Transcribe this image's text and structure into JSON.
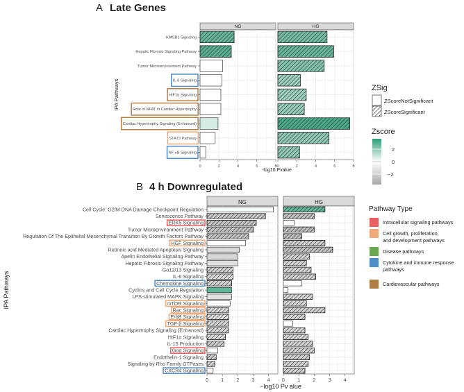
{
  "chart_data": [
    {
      "type": "bar",
      "panel_label": "A",
      "title": "Late Genes",
      "facets": [
        "NG",
        "HG"
      ],
      "xlabel": "-log10 Pvalue",
      "ylabel": "IPA Pathways",
      "xlim": [
        0,
        8
      ],
      "xticks": [
        0,
        2,
        4,
        6,
        8
      ],
      "grid": true,
      "categories": [
        "HMGB1 Signaling",
        "Hepatic Fibrosis Signaling Pathway",
        "Tumor Microenvironment Pathway",
        "IL-6 Signaling",
        "HIF1α Signaling",
        "Role of NFAT in Cardiac Hypertrophy",
        "Cardiac Hypertrophy Signaling (Enhanced)",
        "STAT3 Pathway",
        "NF-κB Signaling"
      ],
      "category_box_colors": [
        "",
        "",
        "",
        "#4f8ec8",
        "#b07d45",
        "#b07d45",
        "#b07d45",
        "#f0a978",
        "#4f8ec8"
      ],
      "series": [
        {
          "name": "NG",
          "values": [
            3.6,
            3.3,
            2.4,
            2.3,
            2.2,
            2.2,
            1.9,
            1.6,
            0.6
          ],
          "zscore": [
            2.2,
            2.4,
            0.0,
            0.0,
            0.0,
            0.0,
            0.6,
            0.0,
            0.0
          ],
          "significant": [
            true,
            true,
            false,
            false,
            false,
            false,
            false,
            false,
            false
          ]
        },
        {
          "name": "HG",
          "values": [
            5.2,
            5.9,
            4.9,
            2.4,
            3.0,
            2.8,
            7.6,
            5.4,
            2.3
          ],
          "zscore": [
            2.0,
            2.2,
            1.8,
            1.4,
            1.4,
            1.5,
            2.6,
            1.6,
            1.6
          ],
          "significant": [
            true,
            true,
            true,
            true,
            true,
            true,
            true,
            true,
            true
          ]
        }
      ],
      "legend": {
        "zsig_title": "ZSig",
        "zsig_items": [
          "ZScoreNotSignificant",
          "ZScoreSignificant"
        ],
        "zscore_title": "Zscore",
        "zscore_ticks": [
          "2",
          "0",
          "−2"
        ],
        "zscore_range": [
          -3,
          3
        ],
        "colors": {
          "high": "#2e9e78",
          "mid": "#ffffff",
          "low": "#a8a8a8"
        }
      }
    },
    {
      "type": "bar",
      "panel_label": "B",
      "title": "4 h Downregulated",
      "facets": [
        "NG",
        "HG"
      ],
      "xlabel": "−log10 Pv alue",
      "ylabel": "IPA Pathways",
      "xlim": [
        0,
        4.6
      ],
      "xticks": [
        0,
        1,
        2,
        3,
        4
      ],
      "grid": true,
      "categories": [
        "Cell Cycle: G2/M DNA Damage Checkpoint Regulation",
        "Senescence Pathway",
        "ERK5 Signaling",
        "Tumor Microenvironment Pathway",
        "Regulation Of The Epithelial Mesenchymal Transition By Growth Factors Pathway",
        "HGF Signaling",
        "Retinoic acid Mediated Apoptosis Signaling",
        "Apelin Endothelial Signaling Pathway",
        "Hepatic Fibrosis Signaling Pathway",
        "Gα12/13 Signaling",
        "IL-8 Signaling",
        "Chemokine Signaling",
        "Cyclins and Cell Cycle Regulation",
        "LPS-stimulated MAPK Signaling",
        "mTOR Signaling",
        "Rac Signaling",
        "ErbB Signaling",
        "TGF-β Signaling",
        "Cardiac Hypertrophy Signaling (Enhanced)",
        "HIF1α Signaling",
        "IL-15 Production",
        "Gαq Signaling",
        "Endothelin-1 Signaling",
        "Signaling by Rho Family GTPases",
        "CXCR4 Signaling"
      ],
      "category_box_colors": [
        "",
        "",
        "#e86060",
        "",
        "",
        "#f0a978",
        "",
        "",
        "",
        "",
        "",
        "#4f8ec8",
        "",
        "",
        "#f0a978",
        "#f0a978",
        "#f0a978",
        "#f0a978",
        "",
        "",
        "",
        "#e86060",
        "",
        "",
        "#4f8ec8"
      ],
      "series": [
        {
          "name": "NG",
          "values": [
            4.3,
            3.8,
            3.2,
            3.0,
            2.7,
            2.5,
            2.1,
            2.0,
            2.0,
            1.7,
            1.7,
            1.6,
            1.6,
            1.6,
            1.5,
            1.4,
            1.4,
            1.4,
            1.4,
            1.2,
            1.1,
            0.7,
            0.6,
            0.5,
            0.4
          ],
          "zscore": [
            0.1,
            -1.9,
            -1.9,
            -2.0,
            -2.0,
            0.0,
            -1.3,
            -1.4,
            -1.1,
            -1.6,
            -1.2,
            -1.4,
            2.3,
            -1.1,
            0.0,
            -1.3,
            -1.1,
            -1.4,
            -1.4,
            -1.2,
            -1.7,
            0.0,
            -1.7,
            -1.4,
            0.0
          ],
          "significant": [
            false,
            true,
            true,
            true,
            true,
            false,
            false,
            false,
            false,
            true,
            true,
            true,
            false,
            false,
            false,
            true,
            true,
            true,
            true,
            true,
            true,
            false,
            true,
            true,
            false
          ]
        },
        {
          "name": "HG",
          "values": [
            2.7,
            2.0,
            0.7,
            2.0,
            1.2,
            2.7,
            3.2,
            1.7,
            1.5,
            1.8,
            2.1,
            1.2,
            0.3,
            1.9,
            1.5,
            2.7,
            1.4,
            0.6,
            1.4,
            1.6,
            1.9,
            2.0,
            1.7,
            1.6,
            1.4
          ],
          "zscore": [
            2.2,
            -2.1,
            0.0,
            -2.2,
            -2.2,
            -1.6,
            -2.1,
            -1.6,
            -1.4,
            -1.5,
            -1.6,
            0.0,
            0.0,
            -1.4,
            -1.3,
            -1.6,
            -1.4,
            0.0,
            -1.4,
            -1.3,
            -1.5,
            -1.6,
            -1.6,
            -1.5,
            -1.5
          ],
          "significant": [
            true,
            true,
            false,
            true,
            true,
            true,
            true,
            true,
            true,
            true,
            true,
            false,
            false,
            true,
            true,
            true,
            true,
            false,
            true,
            true,
            true,
            true,
            true,
            true,
            true
          ]
        }
      ],
      "legend": {
        "title": "Pathway Type",
        "items": [
          {
            "label": "Intracellular signaling pathways",
            "color": "#e86060"
          },
          {
            "label": "Cell growth, proliferation, and development pathways",
            "color": "#f0a978"
          },
          {
            "label": "Disease pathways",
            "color": "#6aa84f"
          },
          {
            "label": "Cytokine and immune response pathways",
            "color": "#4f8ec8"
          },
          {
            "label": "Cardiovascular pathways",
            "color": "#b07d45"
          }
        ]
      }
    }
  ]
}
